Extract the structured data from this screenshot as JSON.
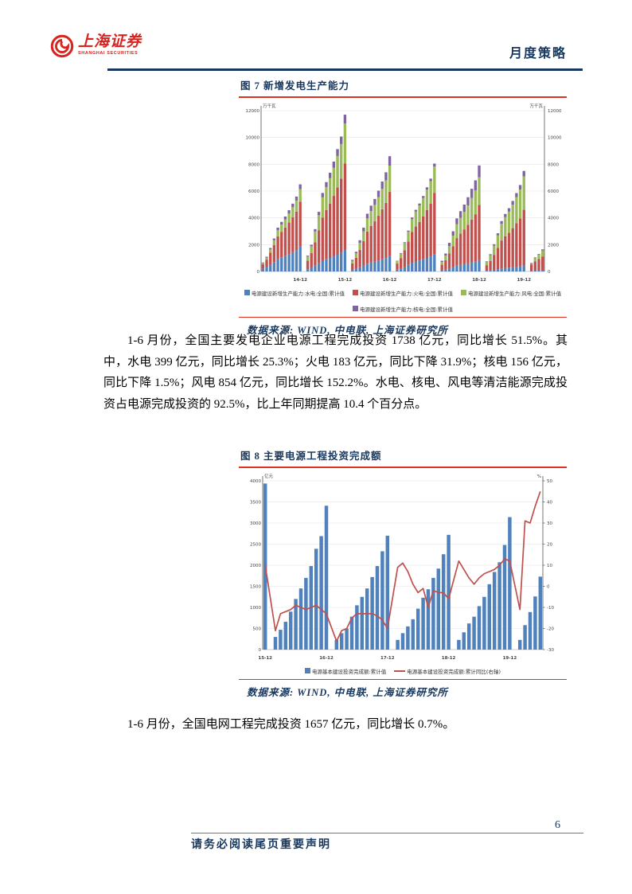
{
  "header": {
    "brand": "上海证券",
    "brand_sub": "SHANGHAI SECURITIES",
    "doc_type": "月度策略"
  },
  "colors": {
    "navy": "#17375e",
    "accent_red": "#e0301e",
    "logo_red": "#d8231f",
    "bar_blue": "#4f81bd",
    "bar_red": "#c0504d",
    "bar_green": "#9bbb59",
    "bar_purple": "#8064a2"
  },
  "figure7": {
    "title": "图 7 新增发电生产能力",
    "source": "数据来源: WIND, 中电联, 上海证券研究所"
  },
  "figure8": {
    "title": "图 8 主要电源工程投资完成额",
    "source": "数据来源: WIND, 中电联, 上海证券研究所"
  },
  "paragraphs": {
    "p1": "1-6 月份，全国主要发电企业电源工程完成投资 1738 亿元，同比增长 51.5%。其中，水电 399 亿元，同比增长 25.3%；火电 183 亿元，同比下降 31.9%；核电 156 亿元，同比下降 1.5%；风电 854 亿元，同比增长 152.2%。水电、核电、风电等清洁能源完成投资占电源完成投资的 92.5%，比上年同期提高 10.4 个百分点。",
    "p2": "1-6 月份，全国电网工程完成投资 1657 亿元，同比增长 0.7%。"
  },
  "footer": {
    "disclaimer": "请务必阅读尾页重要声明",
    "page_number": "6"
  },
  "chart_data": [
    {
      "type": "bar",
      "stacked": true,
      "title": "新增发电生产能力",
      "unit_left": "万千瓦",
      "unit_right": "万千瓦",
      "ylim": [
        0,
        12000
      ],
      "ytick_step": 2000,
      "grid": true,
      "legend_position": "bottom",
      "series": [
        {
          "name": "水电",
          "color": "#4f81bd"
        },
        {
          "name": "火电",
          "color": "#c0504d"
        },
        {
          "name": "风电",
          "color": "#9bbb59"
        },
        {
          "name": "核电",
          "color": "#8064a2"
        }
      ],
      "legend": [
        {
          "label": "电源建设新增生产能力:水电:全国:累计值",
          "color": "#4f81bd",
          "marker": "box"
        },
        {
          "label": "电源建设新增生产能力:火电:全国:累计值",
          "color": "#c0504d",
          "marker": "box"
        },
        {
          "label": "电源建设新增生产能力:风电:全国:累计值",
          "color": "#9bbb59",
          "marker": "box"
        },
        {
          "label": "电源建设新增生产能力:核电:全国:累计值",
          "color": "#8064a2",
          "marker": "box"
        }
      ],
      "groups": [
        {
          "tick": "14-12",
          "values": {
            "水电": [
              190,
              310,
              500,
              700,
              930,
              1050,
              1170,
              1300,
              1440,
              1590,
              1850
            ],
            "火电": [
              340,
              570,
              900,
              1270,
              1680,
              1910,
              2110,
              2350,
              2610,
              2880,
              3350
            ],
            "风电": [
              100,
              160,
              260,
              360,
              480,
              540,
              600,
              670,
              740,
              820,
              950
            ],
            "核电": [
              40,
              60,
              90,
              130,
              180,
              200,
              220,
              250,
              270,
              300,
              350
            ]
          }
        },
        {
          "tick": "15-12",
          "values": {
            "水电": [
              160,
              270,
              430,
              610,
              800,
              910,
              1010,
              1120,
              1250,
              1380,
              1600
            ],
            "火电": [
              650,
              1100,
              1740,
              2450,
              3230,
              3680,
              4060,
              4520,
              5030,
              5550,
              6450
            ],
            "风电": [
              300,
              510,
              810,
              1140,
              1500,
              1710,
              1890,
              2100,
              2340,
              2580,
              3000
            ],
            "核电": [
              70,
              110,
              180,
              250,
              330,
              370,
              410,
              460,
              510,
              560,
              650
            ]
          }
        },
        {
          "tick": "16-12",
          "values": {
            "水电": [
              120,
              200,
              310,
              440,
              580,
              660,
              720,
              810,
              900,
              990,
              1150
            ],
            "火电": [
              480,
              820,
              1300,
              1820,
              2400,
              2740,
              3020,
              3360,
              3740,
              4130,
              4800
            ],
            "风电": [
              200,
              330,
              530,
              740,
              980,
              1110,
              1230,
              1370,
              1520,
              1680,
              1950
            ],
            "核电": [
              70,
              120,
              190,
              270,
              350,
              400,
              440,
              490,
              550,
              600,
              700
            ]
          }
        },
        {
          "tick": "17-12",
          "values": {
            "水电": [
              130,
              220,
              350,
              490,
              650,
              740,
              810,
              900,
              1010,
              1110,
              1290
            ],
            "火电": [
              460,
              780,
              1240,
              1740,
              2290,
              2610,
              2890,
              3210,
              3570,
              3940,
              4580
            ],
            "风电": [
              200,
              330,
              530,
              740,
              980,
              1120,
              1230,
              1370,
              1530,
              1690,
              1960
            ],
            "核电": [
              20,
              40,
              60,
              80,
              110,
              130,
              140,
              150,
              170,
              190,
              220
            ]
          }
        },
        {
          "tick": "18-12",
          "values": {
            "水电": [
              90,
              140,
              230,
              320,
              430,
              480,
              540,
              600,
              660,
              730,
              850
            ],
            "火电": [
              410,
              700,
              1110,
              1570,
              2060,
              2350,
              2600,
              2880,
              3210,
              3540,
              4120
            ],
            "风电": [
              210,
              350,
              560,
              780,
              1030,
              1170,
              1300,
              1440,
              1610,
              1770,
              2060
            ],
            "核电": [
              90,
              150,
              240,
              330,
              440,
              500,
              550,
              620,
              690,
              760,
              880
            ]
          }
        },
        {
          "tick": "19-12",
          "values": {
            "水电": [
              50,
              80,
              120,
              170,
              230,
              260,
              280,
              320,
              350,
              390,
              450
            ],
            "火电": [
              420,
              710,
              1120,
              1580,
              2080,
              2370,
              2610,
              2910,
              3240,
              3570,
              4150
            ],
            "风电": [
              250,
              430,
              680,
              950,
              1250,
              1430,
              1580,
              1750,
              1950,
              2150,
              2500
            ],
            "核电": [
              40,
              70,
              110,
              150,
              200,
              230,
              250,
              280,
              310,
              340,
              400
            ]
          }
        },
        {
          "tick": null,
          "values": {
            "水电": [
              30,
              60,
              90,
              120
            ],
            "火电": [
              500,
              700,
              850,
              1000
            ],
            "风电": [
              100,
              250,
              300,
              450
            ],
            "核电": [
              20,
              40,
              60,
              80
            ]
          }
        }
      ]
    },
    {
      "type": "bar+line",
      "title": "主要电源工程投资完成额",
      "unit_left": "亿元",
      "unit_right": "%",
      "ylim_left": [
        0,
        4000
      ],
      "ytick_left_step": 500,
      "ylim_right": [
        -30,
        50
      ],
      "ytick_right_step": 10,
      "grid": true,
      "bar_color": "#4f81bd",
      "line_color": "#c0504d",
      "legend_position": "bottom",
      "legend": [
        {
          "label": "电源基本建设投资完成额:累计值",
          "color": "#4f81bd",
          "marker": "box"
        },
        {
          "label": "电源基本建设投资完成额:累计同比(右轴)",
          "color": "#c0504d",
          "marker": "line"
        }
      ],
      "groups": [
        {
          "tick": "15-12",
          "bars": [
            3936
          ],
          "line": [
            10
          ]
        },
        {
          "tick": "16-12",
          "bars": [
            300,
            470,
            660,
            900,
            1200,
            1450,
            1700,
            1980,
            2390,
            2690,
            3410
          ],
          "line": [
            -21,
            -13,
            -12,
            -11,
            -9,
            -10,
            -11,
            -10,
            -9,
            -11,
            -13
          ]
        },
        {
          "tick": "17-12",
          "bars": [
            230,
            390,
            500,
            780,
            1050,
            1250,
            1450,
            1720,
            1980,
            2330,
            2700
          ],
          "line": [
            -26,
            -21,
            -20,
            -15,
            -13,
            -13,
            -13,
            -13,
            -14,
            -16,
            -20
          ]
        },
        {
          "tick": "18-12",
          "bars": [
            230,
            390,
            550,
            720,
            970,
            1230,
            1430,
            1700,
            1920,
            2260,
            2720
          ],
          "line": [
            9,
            11,
            7,
            1,
            -3,
            -1,
            -10,
            -2,
            -3,
            -3,
            -6
          ]
        },
        {
          "tick": "19-12",
          "bars": [
            230,
            410,
            620,
            780,
            1030,
            1250,
            1550,
            1840,
            2070,
            2480,
            3140
          ],
          "line": [
            12,
            8,
            4,
            1,
            4,
            6,
            7,
            8,
            10,
            13,
            12
          ]
        },
        {
          "tick": null,
          "bars": [
            230,
            580,
            890,
            1260,
            1730
          ],
          "line": [
            -11,
            31,
            30,
            38,
            45
          ]
        }
      ]
    }
  ]
}
